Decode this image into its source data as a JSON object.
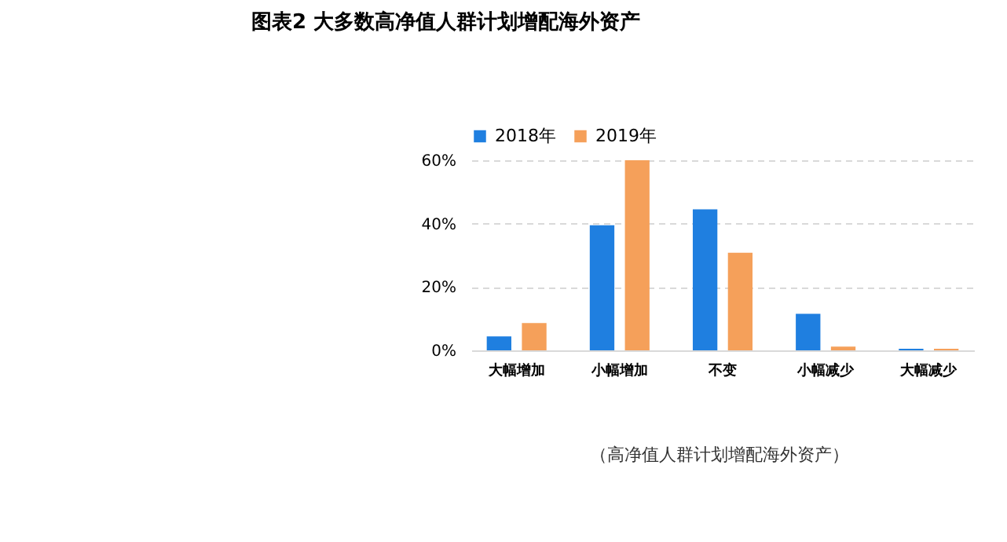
{
  "chart_data": {
    "type": "bar",
    "title": "图表2  大多数高净值人群计划增配海外资产",
    "categories": [
      "大幅增加",
      "小幅增加",
      "不变",
      "小幅减少",
      "大幅减少"
    ],
    "series": [
      {
        "name": "2018年",
        "color": "#1f7fe0",
        "values": [
          4.4,
          39.5,
          44.5,
          11.5,
          0.5
        ]
      },
      {
        "name": "2019年",
        "color": "#f5a05a",
        "values": [
          8.6,
          60,
          30.8,
          1.2,
          0.5
        ]
      }
    ],
    "ylim": [
      0,
      60
    ],
    "yticks": [
      {
        "value": 0,
        "label": "0%"
      },
      {
        "value": 20,
        "label": "20%"
      },
      {
        "value": 40,
        "label": "40%"
      },
      {
        "value": 60,
        "label": "60%"
      }
    ],
    "grid": "y",
    "legend": "top",
    "annotations": [
      "（高净值人群计划增配海外资产）"
    ]
  }
}
